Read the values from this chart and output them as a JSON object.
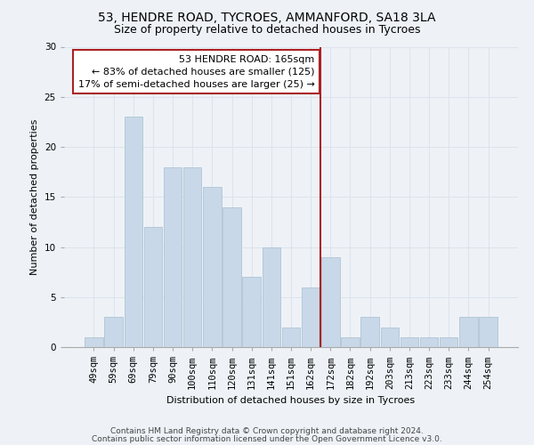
{
  "title1": "53, HENDRE ROAD, TYCROES, AMMANFORD, SA18 3LA",
  "title2": "Size of property relative to detached houses in Tycroes",
  "xlabel": "Distribution of detached houses by size in Tycroes",
  "ylabel": "Number of detached properties",
  "categories": [
    "49sqm",
    "59sqm",
    "69sqm",
    "79sqm",
    "90sqm",
    "100sqm",
    "110sqm",
    "120sqm",
    "131sqm",
    "141sqm",
    "151sqm",
    "162sqm",
    "172sqm",
    "182sqm",
    "192sqm",
    "203sqm",
    "213sqm",
    "223sqm",
    "233sqm",
    "244sqm",
    "254sqm"
  ],
  "values": [
    1,
    3,
    23,
    12,
    18,
    18,
    16,
    14,
    7,
    10,
    2,
    6,
    9,
    1,
    3,
    2,
    1,
    1,
    1,
    3,
    3
  ],
  "bar_color": "#c8d8e8",
  "bar_edgecolor": "#b0c4d4",
  "vline_index": 11.5,
  "vline_color": "#aa2222",
  "annotation_text": "53 HENDRE ROAD: 165sqm\n← 83% of detached houses are smaller (125)\n17% of semi-detached houses are larger (25) →",
  "annotation_box_facecolor": "#ffffff",
  "annotation_box_edgecolor": "#aa2222",
  "ylim": [
    0,
    30
  ],
  "yticks": [
    0,
    5,
    10,
    15,
    20,
    25,
    30
  ],
  "footnote1": "Contains HM Land Registry data © Crown copyright and database right 2024.",
  "footnote2": "Contains public sector information licensed under the Open Government Licence v3.0.",
  "bg_color": "#eef2f7",
  "grid_color": "#dde4ee",
  "title1_fontsize": 10,
  "title2_fontsize": 9,
  "axis_label_fontsize": 8,
  "tick_fontsize": 7.5,
  "footnote_fontsize": 6.5,
  "annotation_fontsize": 8
}
